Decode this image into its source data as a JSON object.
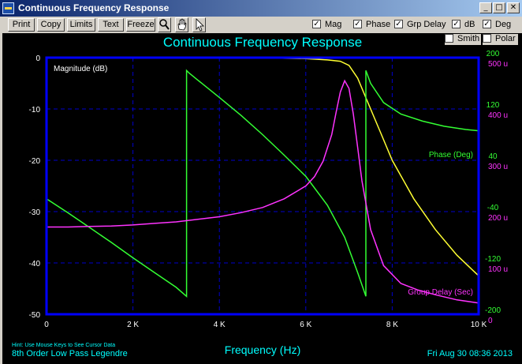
{
  "window": {
    "title": "Continuous Frequency Response",
    "minimize_glyph": "_",
    "maximize_glyph": "□",
    "close_glyph": "✕"
  },
  "toolbar": {
    "buttons": [
      "Print",
      "Copy",
      "Limits",
      "Text",
      "Freeze"
    ],
    "tool_icons": [
      "zoom-icon",
      "hand-pan-icon",
      "pointer-cursor-icon"
    ],
    "checkboxes": [
      {
        "label": "Mag",
        "checked": true
      },
      {
        "label": "Phase",
        "checked": true
      },
      {
        "label": "Grp Delay",
        "checked": true
      },
      {
        "label": "dB",
        "checked": true
      },
      {
        "label": "Deg",
        "checked": true
      },
      {
        "label": "Smith",
        "checked": false
      },
      {
        "label": "Polar",
        "checked": false
      }
    ],
    "check_glyph": "✓"
  },
  "footer": {
    "hint": "Hint: Use Mouse Keys to See Cursor Data",
    "design": "8th Order Low Pass Legendre",
    "timestamp": "Fri Aug 30 08:36 2013"
  },
  "chart_data": {
    "type": "line",
    "title": "Continuous Frequency Response",
    "xlabel": "Frequency (Hz)",
    "xlim": [
      0,
      10000
    ],
    "x_ticks": [
      0,
      2000,
      4000,
      6000,
      8000,
      10000
    ],
    "x_tick_labels": [
      "0",
      "2 K",
      "4 K",
      "6 K",
      "8 K",
      "10 K"
    ],
    "grid": true,
    "axes": {
      "magnitude": {
        "ylim": [
          -50,
          0
        ],
        "ticks": [
          0,
          -10,
          -20,
          -30,
          -40,
          -50
        ],
        "tick_labels": [
          "0",
          "-10",
          "-20",
          "-30",
          "-40",
          "-50"
        ],
        "color": "#ffffff"
      },
      "phase": {
        "ylim": [
          -200,
          200
        ],
        "ticks": [
          200,
          120,
          40,
          -40,
          -120,
          -200
        ],
        "tick_labels": [
          "200",
          "120",
          "40",
          "-40",
          "-120",
          "-200"
        ],
        "color": "#33ff33"
      },
      "group_delay": {
        "ylim": [
          0,
          0.0005
        ],
        "ticks": [
          0.0005,
          0.0004,
          0.0003,
          0.0002,
          0.0001,
          0
        ],
        "tick_labels": [
          "500 u",
          "400 u",
          "300 u",
          "200 u",
          "100 u",
          "0"
        ],
        "color": "#ff33ff"
      }
    },
    "colors": {
      "background": "#000000",
      "frame": "#0000ff",
      "grid": "#0000cc",
      "title": "#00ffff",
      "xlabel": "#00ffff",
      "footer": "#00ffff",
      "ticks": "#ffffff"
    },
    "series": [
      {
        "name": "Magnitude (dB)",
        "axis": "magnitude",
        "color": "#ffff33",
        "x": [
          0,
          1000,
          2000,
          3000,
          4000,
          5000,
          6000,
          6500,
          6800,
          7000,
          7200,
          7400,
          7700,
          8000,
          8500,
          9000,
          9500,
          10000
        ],
        "y": [
          0,
          0,
          0,
          0,
          0,
          -0.05,
          -0.2,
          -0.45,
          -0.7,
          -1.5,
          -4,
          -8,
          -14,
          -20,
          -27.5,
          -33.5,
          -38.5,
          -42.5
        ]
      },
      {
        "name": "Phase (Deg)",
        "axis": "phase",
        "color": "#33ff33",
        "x": [
          0,
          500,
          1000,
          1500,
          2000,
          2500,
          3000,
          3240,
          3240,
          3300,
          3500,
          4000,
          4500,
          5000,
          5500,
          6000,
          6500,
          6900,
          7200,
          7390,
          7390,
          7500,
          7800,
          8200,
          8700,
          9200,
          9700,
          10000
        ],
        "y": [
          -20,
          -42,
          -65,
          -88,
          -112,
          -135,
          -158,
          -172,
          180,
          176,
          165,
          138,
          110,
          80,
          48,
          15,
          -30,
          -80,
          -135,
          -172,
          180,
          160,
          130,
          112,
          101,
          93,
          88,
          86
        ]
      },
      {
        "name": "Group Delay (Sec)",
        "axis": "group_delay",
        "color": "#ff33ff",
        "x": [
          0,
          500,
          1000,
          1500,
          2000,
          2500,
          3000,
          3500,
          4000,
          4500,
          5000,
          5500,
          6000,
          6200,
          6400,
          6600,
          6700,
          6800,
          6900,
          7000,
          7100,
          7200,
          7300,
          7500,
          7800,
          8200,
          8600,
          9000,
          9500,
          10000
        ],
        "y": [
          0.00017,
          0.00017,
          0.000171,
          0.000172,
          0.000174,
          0.000177,
          0.00018,
          0.000185,
          0.00019,
          0.000198,
          0.000208,
          0.000225,
          0.00025,
          0.000268,
          0.000298,
          0.00035,
          0.000393,
          0.000433,
          0.000455,
          0.00044,
          0.00039,
          0.000325,
          0.00026,
          0.000165,
          9.5e-05,
          6e-05,
          4.7e-05,
          3.8e-05,
          2.8e-05,
          2.2e-05
        ]
      }
    ]
  }
}
